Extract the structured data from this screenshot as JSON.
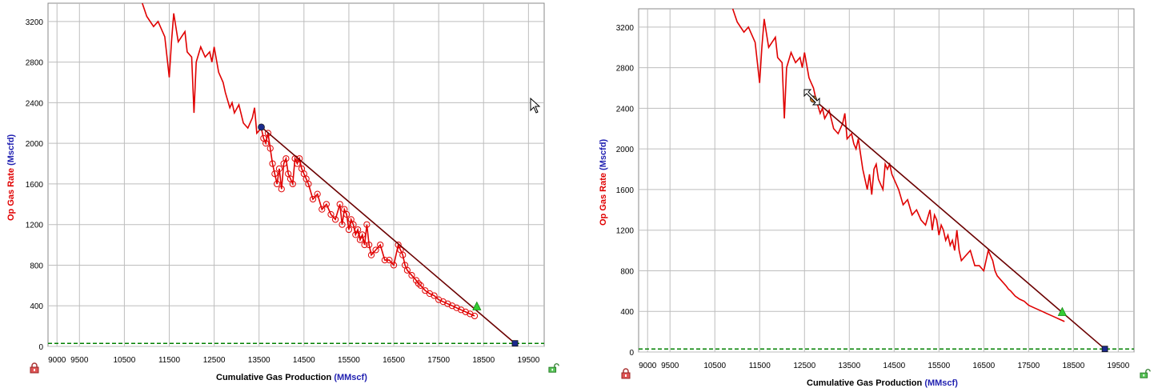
{
  "chart_data": [
    {
      "type": "line",
      "xlabel": "Cumulative Gas Production",
      "xlabel_unit": "(MMscf)",
      "ylabel": "Op Gas Rate",
      "ylabel_unit": "(Mscfd)",
      "x_ticks": [
        9000,
        9500,
        10500,
        11500,
        12500,
        13500,
        14500,
        15500,
        16500,
        17500,
        18500,
        19500
      ],
      "y_ticks": [
        0,
        400,
        800,
        1200,
        1600,
        2000,
        2400,
        2800,
        3200
      ],
      "xlim": [
        8800,
        19850
      ],
      "ylim": [
        0,
        3380
      ],
      "grid": true,
      "colors": {
        "data": "#e00000",
        "fit": "#6b0000",
        "limit": "#008000",
        "start": "#1b2a8c",
        "end": "#1b2a8c",
        "forecast": "#33cc33"
      },
      "series": [
        {
          "role": "data",
          "marker": "circle",
          "x": [
            10900,
            11000,
            11150,
            11250,
            11400,
            11500,
            11550,
            11600,
            11700,
            11850,
            11900,
            12000,
            12050,
            12100,
            12200,
            12300,
            12400,
            12450,
            12500,
            12600,
            12650,
            12700,
            12750,
            12850,
            12900,
            12950,
            13050,
            13150,
            13250,
            13350,
            13400,
            13450,
            13550,
            13600,
            13650,
            13700,
            13750,
            13800,
            13850,
            13900,
            13950,
            14000,
            14050,
            14100,
            14150,
            14200,
            14250,
            14300,
            14350,
            14400,
            14450,
            14500,
            14550,
            14600,
            14700,
            14800,
            14900,
            15000,
            15100,
            15200,
            15300,
            15350,
            15400,
            15450,
            15500,
            15550,
            15600,
            15650,
            15700,
            15750,
            15800,
            15850,
            15900,
            15950,
            16000,
            16100,
            16200,
            16300,
            16400,
            16500,
            16600,
            16650,
            16700,
            16750,
            16800,
            16900,
            17000,
            17050,
            17100,
            17200,
            17300,
            17400,
            17500,
            17600,
            17700,
            17800,
            17900,
            18000,
            18100,
            18200,
            18300
          ],
          "y": [
            3380,
            3250,
            3150,
            3200,
            3050,
            2650,
            3000,
            3280,
            3000,
            3100,
            2900,
            2850,
            2300,
            2800,
            2950,
            2850,
            2900,
            2800,
            2950,
            2700,
            2650,
            2600,
            2500,
            2350,
            2400,
            2300,
            2380,
            2200,
            2150,
            2250,
            2350,
            2100,
            2150,
            2050,
            2000,
            2100,
            1950,
            1800,
            1700,
            1600,
            1750,
            1550,
            1800,
            1850,
            1700,
            1650,
            1600,
            1850,
            1800,
            1850,
            1750,
            1700,
            1650,
            1600,
            1450,
            1500,
            1350,
            1400,
            1300,
            1250,
            1400,
            1200,
            1350,
            1300,
            1150,
            1250,
            1200,
            1100,
            1150,
            1050,
            1100,
            1000,
            1200,
            1000,
            900,
            950,
            1000,
            850,
            850,
            800,
            1000,
            950,
            900,
            800,
            750,
            700,
            650,
            620,
            600,
            550,
            520,
            500,
            460,
            440,
            420,
            400,
            380,
            360,
            340,
            320,
            300
          ]
        },
        {
          "role": "fit",
          "x": [
            13550,
            19200
          ],
          "y": [
            2160,
            30
          ]
        },
        {
          "role": "limit",
          "x": [
            8800,
            19850
          ],
          "y": [
            30,
            30
          ]
        }
      ],
      "points": {
        "start": {
          "x": 13550,
          "y": 2160
        },
        "forecast": {
          "x": 18350,
          "y": 390
        },
        "end": {
          "x": 19200,
          "y": 30
        }
      }
    },
    {
      "type": "line",
      "xlabel": "Cumulative Gas Production",
      "xlabel_unit": "(MMscf)",
      "ylabel": "Op Gas Rate",
      "ylabel_unit": "(Mscfd)",
      "x_ticks": [
        9000,
        9500,
        10500,
        11500,
        12500,
        13500,
        14500,
        15500,
        16500,
        17500,
        18500,
        19500
      ],
      "y_ticks": [
        0,
        400,
        800,
        1200,
        1600,
        2000,
        2400,
        2800,
        3200
      ],
      "xlim": [
        8800,
        19850
      ],
      "ylim": [
        0,
        3380
      ],
      "grid": true,
      "colors": {
        "data": "#e00000",
        "fit": "#6b0000",
        "limit": "#008000",
        "start": "#e07b1f",
        "end": "#1b2a8c",
        "forecast": "#33cc33"
      },
      "series": [
        {
          "role": "data",
          "marker": "none",
          "x": [
            10900,
            11000,
            11150,
            11250,
            11400,
            11500,
            11550,
            11600,
            11700,
            11850,
            11900,
            12000,
            12050,
            12100,
            12200,
            12300,
            12400,
            12450,
            12500,
            12600,
            12650,
            12700,
            12750,
            12850,
            12900,
            12950,
            13050,
            13150,
            13250,
            13350,
            13400,
            13450,
            13550,
            13600,
            13650,
            13700,
            13750,
            13800,
            13850,
            13900,
            13950,
            14000,
            14050,
            14100,
            14150,
            14200,
            14250,
            14300,
            14350,
            14400,
            14450,
            14500,
            14550,
            14600,
            14700,
            14800,
            14900,
            15000,
            15100,
            15200,
            15300,
            15350,
            15400,
            15450,
            15500,
            15550,
            15600,
            15650,
            15700,
            15750,
            15800,
            15850,
            15900,
            15950,
            16000,
            16100,
            16200,
            16300,
            16400,
            16500,
            16600,
            16650,
            16700,
            16750,
            16800,
            16900,
            17000,
            17050,
            17100,
            17200,
            17300,
            17400,
            17500,
            17600,
            17700,
            17800,
            17900,
            18000,
            18100,
            18200,
            18300
          ],
          "y": [
            3380,
            3250,
            3150,
            3200,
            3050,
            2650,
            3000,
            3280,
            3000,
            3100,
            2900,
            2850,
            2300,
            2800,
            2950,
            2850,
            2900,
            2800,
            2950,
            2700,
            2650,
            2600,
            2500,
            2350,
            2400,
            2300,
            2380,
            2200,
            2150,
            2250,
            2350,
            2100,
            2150,
            2050,
            2000,
            2100,
            1950,
            1800,
            1700,
            1600,
            1750,
            1550,
            1800,
            1850,
            1700,
            1650,
            1600,
            1850,
            1800,
            1850,
            1750,
            1700,
            1650,
            1600,
            1450,
            1500,
            1350,
            1400,
            1300,
            1250,
            1400,
            1200,
            1350,
            1300,
            1150,
            1250,
            1200,
            1100,
            1150,
            1050,
            1100,
            1000,
            1200,
            1000,
            900,
            950,
            1000,
            850,
            850,
            800,
            1000,
            950,
            900,
            800,
            750,
            700,
            650,
            620,
            600,
            550,
            520,
            500,
            460,
            440,
            420,
            400,
            380,
            360,
            340,
            320,
            300
          ]
        },
        {
          "role": "fit",
          "x": [
            12700,
            19200
          ],
          "y": [
            2490,
            30
          ]
        },
        {
          "role": "limit",
          "x": [
            8800,
            19850
          ],
          "y": [
            30,
            30
          ]
        }
      ],
      "points": {
        "start": {
          "x": 12700,
          "y": 2490
        },
        "forecast": {
          "x": 18250,
          "y": 390
        },
        "end": {
          "x": 19200,
          "y": 30
        }
      }
    }
  ],
  "icons": {
    "lock_closed": "lock-closed-icon",
    "lock_open": "lock-open-icon",
    "cursor": "mouse-pointer-icon"
  }
}
